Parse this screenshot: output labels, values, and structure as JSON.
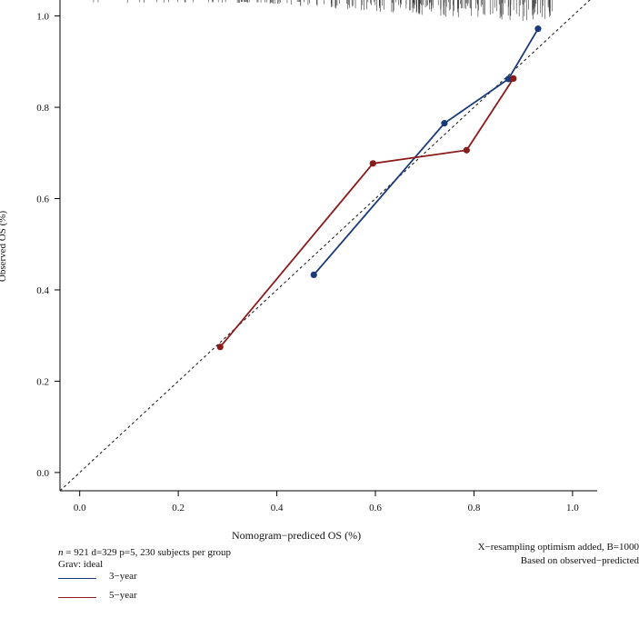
{
  "chart_data": {
    "type": "line",
    "xlabel": "Nomogram−prediced OS (%)",
    "ylabel": "Observed OS (%)",
    "xlim": [
      -0.04,
      1.05
    ],
    "ylim": [
      -0.04,
      1.035
    ],
    "x_ticks": [
      "0.0",
      "0.2",
      "0.4",
      "0.6",
      "0.8",
      "1.0"
    ],
    "y_ticks": [
      "0.0",
      "0.2",
      "0.4",
      "0.6",
      "0.8",
      "1.0"
    ],
    "x_tick_values": [
      0.0,
      0.2,
      0.4,
      0.6,
      0.8,
      1.0
    ],
    "y_tick_values": [
      0.0,
      0.2,
      0.4,
      0.6,
      0.8,
      1.0
    ],
    "ideal_line": true,
    "series": [
      {
        "name": "3−year",
        "color": "#1a3a7a",
        "points": [
          {
            "x": 0.475,
            "y": 0.433
          },
          {
            "x": 0.74,
            "y": 0.765
          },
          {
            "x": 0.87,
            "y": 0.862
          },
          {
            "x": 0.93,
            "y": 0.972
          }
        ]
      },
      {
        "name": "5−year",
        "color": "#8b1a1a",
        "points": [
          {
            "x": 0.285,
            "y": 0.275
          },
          {
            "x": 0.595,
            "y": 0.677
          },
          {
            "x": 0.785,
            "y": 0.706
          },
          {
            "x": 0.88,
            "y": 0.863
          }
        ]
      }
    ],
    "rug": {
      "from": 0.02,
      "to": 0.97,
      "position": "top"
    }
  },
  "annotations": {
    "n_label": "n",
    "line1_rest": " = 921 d=329 p=5, 230 subjects per group",
    "line2": "Grav: ideal",
    "right1": "X−resampling optimism added, B=1000",
    "right2": "Based on observed−predicted"
  }
}
